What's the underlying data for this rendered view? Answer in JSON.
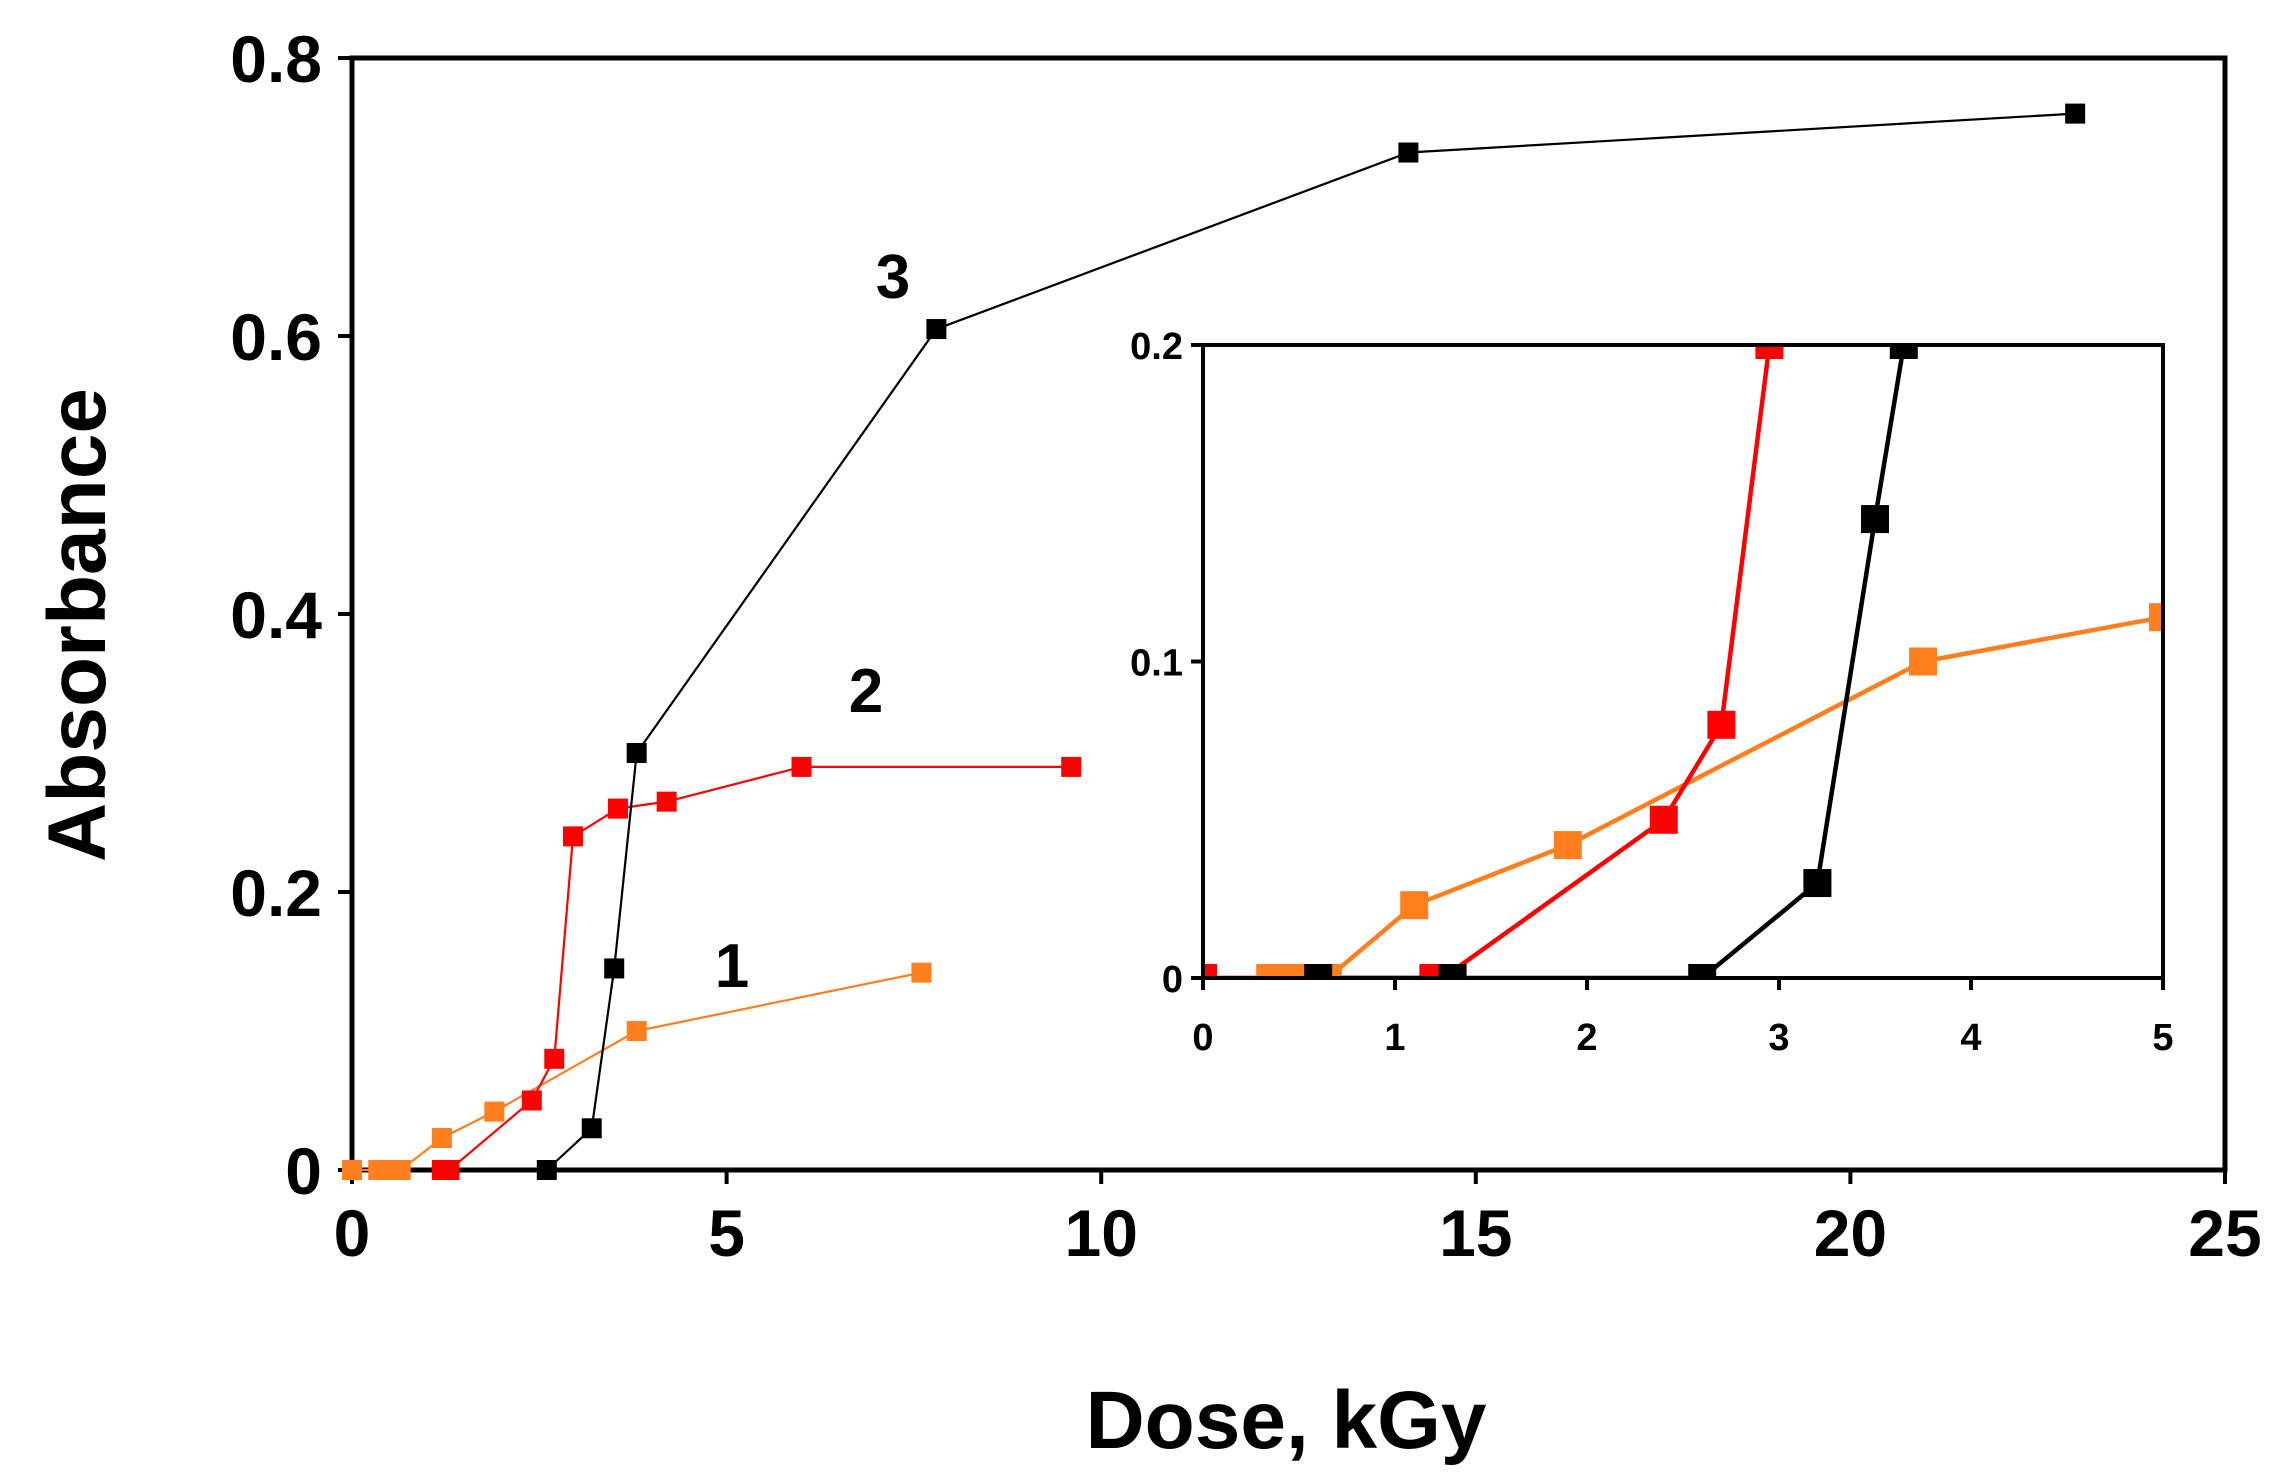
{
  "chart_data": [
    {
      "id": "main",
      "type": "line",
      "xlabel": "Dose, kGy",
      "ylabel": "Absorbance",
      "xlim": [
        0,
        25
      ],
      "ylim": [
        0,
        0.8
      ],
      "xticks": [
        0,
        5,
        10,
        15,
        20,
        25
      ],
      "yticks": [
        0,
        0.2,
        0.4,
        0.6,
        0.8
      ],
      "xtick_labels": [
        "0",
        "5",
        "10",
        "15",
        "20",
        "25"
      ],
      "ytick_labels": [
        "0",
        "0.2",
        "0.4",
        "0.6",
        "0.8"
      ],
      "grid": false,
      "series": [
        {
          "name": "1",
          "label": "1",
          "color": "#ff7f1e",
          "x": [
            0,
            0.35,
            0.55,
            0.65,
            1.2,
            1.9,
            3.8,
            7.6
          ],
          "y": [
            0,
            0,
            0,
            0,
            0.023,
            0.042,
            0.1,
            0.142
          ]
        },
        {
          "name": "2",
          "label": "2",
          "color": "#ff0000",
          "x": [
            1.2,
            1.3,
            2.4,
            2.7,
            2.95,
            3.55,
            4.2,
            6.0,
            9.6
          ],
          "y": [
            0,
            0,
            0.05,
            0.08,
            0.24,
            0.26,
            0.265,
            0.29,
            0.29
          ]
        },
        {
          "name": "3",
          "label": "3",
          "color": "#000000",
          "x": [
            2.6,
            3.2,
            3.5,
            3.8,
            7.8,
            14.1,
            23.0
          ],
          "y": [
            0,
            0.03,
            0.145,
            0.3,
            0.605,
            0.732,
            0.76
          ]
        }
      ]
    },
    {
      "id": "inset",
      "type": "line",
      "title": "",
      "xlim": [
        0,
        5
      ],
      "ylim": [
        0,
        0.2
      ],
      "xticks": [
        0,
        1,
        2,
        3,
        4,
        5
      ],
      "yticks": [
        0,
        0.1,
        0.2
      ],
      "xtick_labels": [
        "0",
        "1",
        "2",
        "3",
        "4",
        "5"
      ],
      "ytick_labels": [
        "0",
        "0.1",
        "0.2"
      ],
      "grid": false,
      "series": [
        {
          "name": "1",
          "color": "#ff7f1e",
          "x": [
            0,
            0.35,
            0.45,
            0.55,
            0.65,
            1.1,
            1.9,
            3.75,
            5.0
          ],
          "y": [
            0,
            0,
            0,
            0,
            0,
            0.023,
            0.042,
            0.1,
            0.114
          ]
        },
        {
          "name": "2",
          "color": "#ff0000",
          "x": [
            0,
            1.2,
            1.25,
            2.4,
            2.7,
            2.95
          ],
          "y": [
            0,
            0,
            0,
            0.05,
            0.08,
            0.2
          ]
        },
        {
          "name": "3",
          "color": "#000000",
          "x": [
            0.6,
            1.3,
            2.6,
            3.2,
            3.5,
            3.65
          ],
          "y": [
            0,
            0,
            0,
            0.03,
            0.145,
            0.2
          ]
        }
      ]
    }
  ]
}
